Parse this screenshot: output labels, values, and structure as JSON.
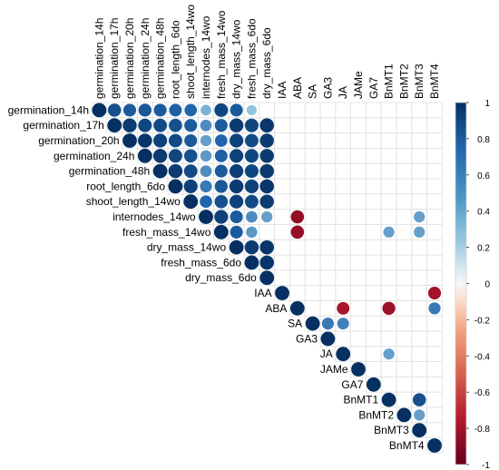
{
  "chart_data": {
    "type": "heatmap",
    "style": "upper-triangle correlation plot with circle markers",
    "variables": [
      "germination_14h",
      "germination_17h",
      "germination_20h",
      "germination_24h",
      "germination_48h",
      "root_length_6do",
      "shoot_length_14wo",
      "internodes_14wo",
      "fresh_mass_14wo",
      "dry_mass_14wo",
      "fresh_mass_6do",
      "dry_mass_6do",
      "IAA",
      "ABA",
      "SA",
      "GA3",
      "JA",
      "JAMe",
      "GA7",
      "BnMT1",
      "BnMT2",
      "BnMT3",
      "BnMT4"
    ],
    "colorbar": {
      "range": [
        -1,
        1
      ],
      "ticks": [
        "1",
        "0.8",
        "0.6",
        "0.4",
        "0.2",
        "0",
        "-0.2",
        "-0.4",
        "-0.6",
        "-0.8",
        "-1"
      ],
      "low_color": "#67001F",
      "mid_color": "#F7F7F7",
      "high_color": "#053061",
      "placement": "right"
    },
    "grid": true,
    "correlations": [
      [
        0,
        0,
        1
      ],
      [
        0,
        1,
        0.85
      ],
      [
        0,
        2,
        0.8
      ],
      [
        0,
        3,
        0.82
      ],
      [
        0,
        4,
        0.8
      ],
      [
        0,
        5,
        0.78
      ],
      [
        0,
        6,
        0.75
      ],
      [
        0,
        7,
        0.55
      ],
      [
        0,
        8,
        0.9
      ],
      [
        0,
        9,
        0.8
      ],
      [
        0,
        10,
        0.5
      ],
      [
        1,
        1,
        1
      ],
      [
        1,
        2,
        0.95
      ],
      [
        1,
        3,
        0.9
      ],
      [
        1,
        4,
        0.88
      ],
      [
        1,
        5,
        0.85
      ],
      [
        1,
        6,
        0.8
      ],
      [
        1,
        7,
        0.65
      ],
      [
        1,
        8,
        0.8
      ],
      [
        1,
        9,
        0.95
      ],
      [
        1,
        10,
        0.9
      ],
      [
        1,
        11,
        0.97
      ],
      [
        2,
        2,
        1
      ],
      [
        2,
        3,
        0.97
      ],
      [
        2,
        4,
        0.92
      ],
      [
        2,
        5,
        0.88
      ],
      [
        2,
        6,
        0.8
      ],
      [
        2,
        7,
        0.6
      ],
      [
        2,
        8,
        0.75
      ],
      [
        2,
        9,
        0.92
      ],
      [
        2,
        10,
        0.88
      ],
      [
        2,
        11,
        0.95
      ],
      [
        3,
        3,
        1
      ],
      [
        3,
        4,
        0.95
      ],
      [
        3,
        5,
        0.9
      ],
      [
        3,
        6,
        0.85
      ],
      [
        3,
        7,
        0.62
      ],
      [
        3,
        8,
        0.78
      ],
      [
        3,
        9,
        0.92
      ],
      [
        3,
        10,
        0.9
      ],
      [
        3,
        11,
        0.95
      ],
      [
        4,
        4,
        1
      ],
      [
        4,
        5,
        0.95
      ],
      [
        4,
        6,
        0.88
      ],
      [
        4,
        7,
        0.65
      ],
      [
        4,
        8,
        0.8
      ],
      [
        4,
        9,
        0.93
      ],
      [
        4,
        10,
        0.9
      ],
      [
        4,
        11,
        0.96
      ],
      [
        5,
        5,
        1
      ],
      [
        5,
        6,
        0.92
      ],
      [
        5,
        7,
        0.7
      ],
      [
        5,
        8,
        0.82
      ],
      [
        5,
        9,
        0.95
      ],
      [
        5,
        10,
        0.92
      ],
      [
        5,
        11,
        0.97
      ],
      [
        6,
        6,
        1
      ],
      [
        6,
        7,
        0.75
      ],
      [
        6,
        8,
        0.85
      ],
      [
        6,
        9,
        0.92
      ],
      [
        6,
        10,
        0.88
      ],
      [
        6,
        11,
        0.95
      ],
      [
        7,
        7,
        1
      ],
      [
        7,
        8,
        0.92
      ],
      [
        7,
        9,
        0.8
      ],
      [
        7,
        10,
        0.65
      ],
      [
        7,
        11,
        0.6
      ],
      [
        7,
        13,
        -0.85
      ],
      [
        7,
        21,
        0.6
      ],
      [
        8,
        8,
        1
      ],
      [
        8,
        9,
        0.8
      ],
      [
        8,
        10,
        0.62
      ],
      [
        8,
        13,
        -0.85
      ],
      [
        8,
        19,
        0.6
      ],
      [
        8,
        21,
        0.6
      ],
      [
        9,
        9,
        1
      ],
      [
        9,
        10,
        0.95
      ],
      [
        9,
        11,
        0.97
      ],
      [
        10,
        10,
        1
      ],
      [
        10,
        11,
        0.97
      ],
      [
        11,
        11,
        1
      ],
      [
        12,
        12,
        1
      ],
      [
        12,
        22,
        -0.8
      ],
      [
        13,
        13,
        1
      ],
      [
        13,
        16,
        -0.78
      ],
      [
        13,
        19,
        -0.82
      ],
      [
        13,
        22,
        0.7
      ],
      [
        14,
        14,
        1
      ],
      [
        14,
        15,
        0.7
      ],
      [
        14,
        16,
        0.68
      ],
      [
        15,
        15,
        1
      ],
      [
        16,
        16,
        1
      ],
      [
        16,
        19,
        0.6
      ],
      [
        17,
        17,
        1
      ],
      [
        18,
        18,
        1
      ],
      [
        19,
        19,
        1
      ],
      [
        19,
        21,
        0.85
      ],
      [
        20,
        20,
        1
      ],
      [
        20,
        21,
        0.6
      ],
      [
        21,
        21,
        1
      ],
      [
        22,
        22,
        1
      ]
    ]
  }
}
